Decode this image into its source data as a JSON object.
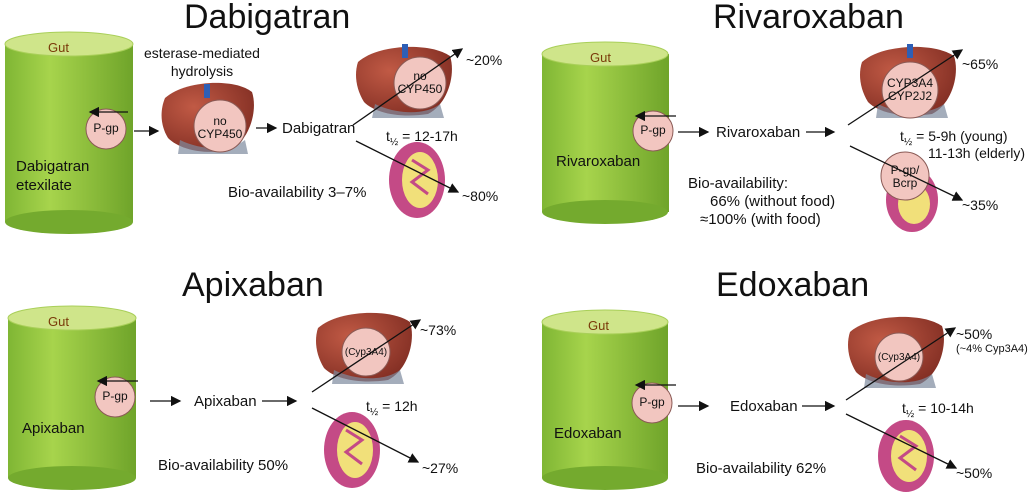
{
  "panels": {
    "dabigatran": {
      "title": "Dabigatran",
      "gut": "Gut",
      "gut_content": "Dabigatran etexilate",
      "transporter": "P-gp",
      "hydrolysis": "esterase-mediated hydrolysis",
      "liver1_enzyme": "no CYP450",
      "drug": "Dabigatran",
      "liver2_enzyme": "no CYP450",
      "hepatic": "~20%",
      "renal": "~80%",
      "half_life_prefix": "t",
      "half_life_sub": "½",
      "half_life_value": "= 12-17h",
      "bioavailability": "Bio-availability 3–7%"
    },
    "rivaroxaban": {
      "title": "Rivaroxaban",
      "gut": "Gut",
      "gut_content": "Rivaroxaban",
      "transporter": "P-gp",
      "drug": "Rivaroxaban",
      "liver_enzyme": "CYP3A4 CYP2J2",
      "hepatic": "~65%",
      "kidney_transporter": "P-gp/ Bcrp",
      "renal": "~35%",
      "half_life_prefix": "t",
      "half_life_sub": "½",
      "half_life_value": "=    5-9h (young)",
      "half_life_value2": "11-13h (elderly)",
      "bioavailability_label": "Bio-availability:",
      "bioavailability_1": "66% (without food)",
      "bioavailability_2": "≈100% (with food)"
    },
    "apixaban": {
      "title": "Apixaban",
      "gut": "Gut",
      "gut_content": "Apixaban",
      "transporter": "P-gp",
      "drug": "Apixaban",
      "liver_enzyme": "(Cyp3A4)",
      "hepatic": "~73%",
      "renal": "~27%",
      "half_life_prefix": "t",
      "half_life_sub": "½",
      "half_life_value": "= 12h",
      "bioavailability": "Bio-availability 50%"
    },
    "edoxaban": {
      "title": "Edoxaban",
      "gut": "Gut",
      "gut_content": "Edoxaban",
      "transporter": "P-gp",
      "drug": "Edoxaban",
      "liver_enzyme": "(Cyp3A4)",
      "hepatic": "~50%",
      "hepatic_note": "(~4% Cyp3A4)",
      "renal": "~50%",
      "half_life_prefix": "t",
      "half_life_sub": "½",
      "half_life_value": "= 10-14h",
      "bioavailability": "Bio-availability 62%"
    }
  },
  "colors": {
    "gut_top": "#c3de6e",
    "gut_body": "#8cc43c",
    "pgp_fill": "#f2c6c0",
    "liver": "#9c3b2e",
    "kidney": "#c44a86"
  }
}
